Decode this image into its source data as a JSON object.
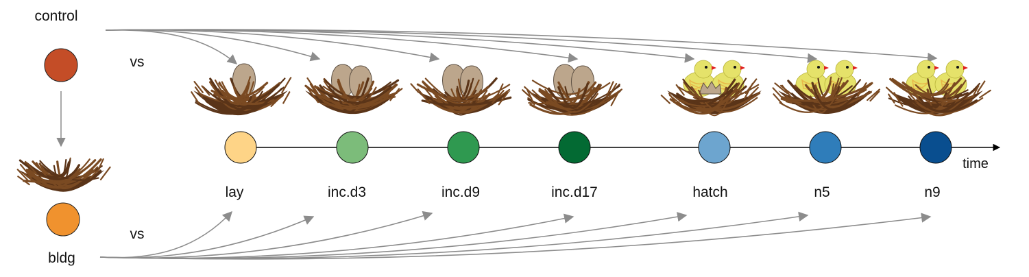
{
  "groups": {
    "control": {
      "label": "control",
      "color": "#C44D27"
    },
    "bldg": {
      "label": "bldg",
      "color": "#F0922E"
    },
    "vs_top": "vs",
    "vs_bottom": "vs"
  },
  "timeline": {
    "axis_label": "time",
    "stages": [
      {
        "label": "lay",
        "color": "#FED487",
        "nest": "egg1"
      },
      {
        "label": "inc.d3",
        "color": "#7CBC7A",
        "nest": "egg2"
      },
      {
        "label": "inc.d9",
        "color": "#2F9950",
        "nest": "egg2"
      },
      {
        "label": "inc.d17",
        "color": "#036A33",
        "nest": "egg2"
      },
      {
        "label": "hatch",
        "color": "#6DA5CF",
        "nest": "hatch"
      },
      {
        "label": "n5",
        "color": "#2F7DBA",
        "nest": "chicks"
      },
      {
        "label": "n9",
        "color": "#094E8F",
        "nest": "chicks"
      }
    ]
  },
  "colors": {
    "arrow": "#8c8c8c",
    "twig_dark": "#5a3418",
    "twig_mid": "#7a4a22",
    "egg": "#bca68c",
    "egg_stroke": "#5e5144",
    "chick": "#e5e26a",
    "chick_wing": "#e8b84a",
    "beak": "#e02020"
  }
}
